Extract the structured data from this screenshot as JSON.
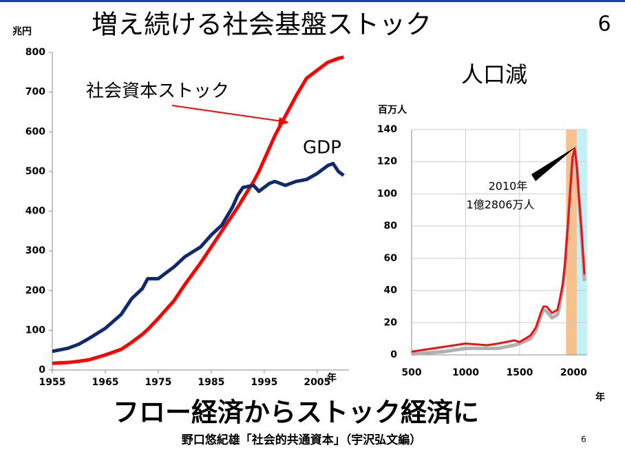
{
  "title": "増え続ける社会基盤ストック",
  "page_number": "6",
  "subtitle": "フロー経済からストック経済に",
  "source": "野口悠紀雄「社会的共通資本」（宇沢弘文編）",
  "footer_page": "6",
  "chart_data": [
    {
      "type": "line",
      "y_unit": "兆円",
      "x_unit": "年",
      "xlim": [
        1955,
        2011
      ],
      "ylim": [
        0,
        800
      ],
      "xticks": [
        1955,
        1965,
        1975,
        1985,
        1995,
        2005
      ],
      "yticks": [
        0,
        100,
        200,
        300,
        400,
        500,
        600,
        700,
        800
      ],
      "grid": false,
      "x": [
        1955,
        1958,
        1960,
        1962,
        1965,
        1968,
        1970,
        1972,
        1973,
        1975,
        1978,
        1980,
        1983,
        1985,
        1987,
        1989,
        1990,
        1991,
        1993,
        1994,
        1996,
        1997,
        1999,
        2001,
        2003,
        2005,
        2007,
        2008,
        2009,
        2010
      ],
      "series": [
        {
          "name": "社会資本ストック",
          "color": "#ff0000",
          "values": [
            17,
            19,
            22,
            26,
            38,
            52,
            70,
            90,
            102,
            130,
            175,
            215,
            270,
            310,
            350,
            390,
            410,
            432,
            475,
            500,
            560,
            590,
            640,
            690,
            735,
            755,
            775,
            780,
            785,
            788
          ]
        },
        {
          "name": "GDP",
          "color": "#102a6b",
          "values": [
            47,
            55,
            65,
            80,
            105,
            140,
            180,
            205,
            230,
            230,
            260,
            285,
            310,
            340,
            365,
            410,
            440,
            460,
            465,
            450,
            470,
            475,
            465,
            475,
            480,
            495,
            515,
            520,
            500,
            490
          ]
        }
      ]
    },
    {
      "type": "line",
      "title": "人口減",
      "y_unit": "百万人",
      "x_unit": "年",
      "annotation": [
        "2010年",
        "1億2806万人"
      ],
      "xlim": [
        500,
        2125
      ],
      "ylim": [
        0,
        140
      ],
      "xticks": [
        500,
        1000,
        1500,
        2000
      ],
      "yticks": [
        0,
        20,
        40,
        60,
        80,
        100,
        120,
        140
      ],
      "grid": true,
      "bands": [
        {
          "range": [
            1930,
            2030
          ],
          "color": "#f9c08a"
        },
        {
          "range": [
            2030,
            2125
          ],
          "color": "#c5f0f5"
        }
      ],
      "x": [
        500,
        800,
        1000,
        1200,
        1300,
        1450,
        1500,
        1600,
        1650,
        1700,
        1720,
        1750,
        1800,
        1850,
        1870,
        1900,
        1920,
        1950,
        1970,
        1990,
        2010,
        2030,
        2050,
        2070,
        2100
      ],
      "series": [
        {
          "color": "#b0b0b0",
          "values": [
            0.5,
            2,
            4,
            4,
            4,
            6,
            7,
            10,
            15,
            25,
            28,
            27,
            23,
            25,
            30,
            43,
            55,
            83,
            103,
            122,
            127,
            116,
            96,
            78,
            46
          ]
        },
        {
          "color": "#ee1111",
          "values": [
            2,
            5,
            7,
            6,
            7,
            9,
            8,
            12,
            17,
            27,
            30,
            30,
            26,
            28,
            34,
            44,
            56,
            84,
            104,
            123,
            128,
            117,
            97,
            80,
            50
          ]
        }
      ]
    }
  ]
}
